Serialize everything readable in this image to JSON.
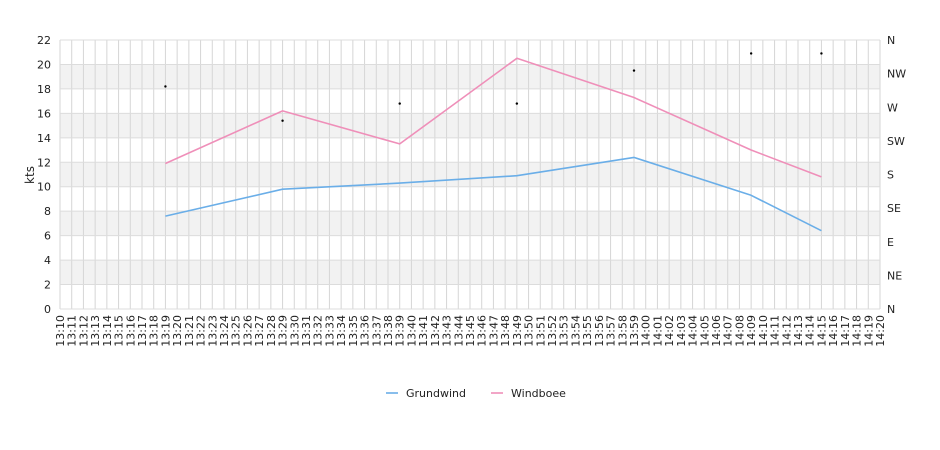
{
  "chart_data": {
    "type": "line",
    "ylabel": "kts",
    "ylim": [
      0,
      22
    ],
    "y_ticks": [
      "0",
      "2",
      "4",
      "6",
      "8",
      "10",
      "12",
      "14",
      "16",
      "18",
      "20",
      "22"
    ],
    "y2_ticks": [
      "N",
      "NE",
      "E",
      "SE",
      "S",
      "SW",
      "W",
      "NW",
      "N"
    ],
    "x_tick_labels": [
      "13:10",
      "13:11",
      "13:12",
      "13:13",
      "13:14",
      "13:15",
      "13:16",
      "13:17",
      "13:18",
      "13:19",
      "13:20",
      "13:21",
      "13:22",
      "13:23",
      "13:24",
      "13:25",
      "13:26",
      "13:27",
      "13:28",
      "13:29",
      "13:30",
      "13:31",
      "13:32",
      "13:33",
      "13:34",
      "13:35",
      "13:36",
      "13:37",
      "13:38",
      "13:39",
      "13:40",
      "13:41",
      "13:42",
      "13:43",
      "13:44",
      "13:45",
      "13:46",
      "13:47",
      "13:48",
      "13:49",
      "13:50",
      "13:51",
      "13:52",
      "13:53",
      "13:54",
      "13:55",
      "13:56",
      "13:57",
      "13:58",
      "13:59",
      "14:00",
      "14:01",
      "14:02",
      "14:03",
      "14:04",
      "14:05",
      "14:06",
      "14:07",
      "14:08",
      "14:09",
      "14:10",
      "14:11",
      "14:12",
      "14:13",
      "14:14",
      "14:15",
      "14:16",
      "14:17",
      "14:18",
      "14:19",
      "14:20"
    ],
    "series": [
      {
        "name": "Grundwind",
        "color": "#6aaee8",
        "x": [
          9,
          19,
          29,
          39,
          49,
          59,
          65
        ],
        "values": [
          7.6,
          9.8,
          10.3,
          10.9,
          12.4,
          9.3,
          6.4
        ]
      },
      {
        "name": "Windboee",
        "color": "#ef8fb9",
        "x": [
          9,
          19,
          29,
          39,
          49,
          59,
          65
        ],
        "values": [
          11.9,
          16.2,
          13.5,
          20.5,
          17.3,
          13.0,
          10.8
        ]
      }
    ],
    "direction_points": {
      "x": [
        9,
        19,
        29,
        39,
        49,
        59,
        65
      ],
      "values": [
        18.2,
        15.4,
        16.8,
        16.8,
        19.5,
        20.9,
        20.9
      ]
    },
    "grid": true,
    "legend_position": "bottom-center"
  }
}
